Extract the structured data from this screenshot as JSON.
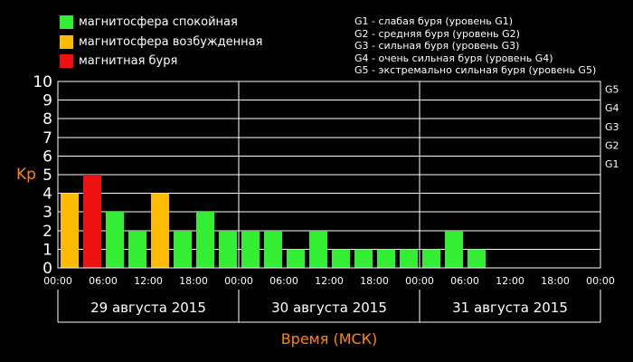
{
  "legend": [
    {
      "label": "магнитосфера спокойная",
      "color": "#33ee33"
    },
    {
      "label": "магнитосфера возбужденная",
      "color": "#ffbb00"
    },
    {
      "label": "магнитная буря",
      "color": "#ee1111"
    }
  ],
  "g_legend": [
    "G1 - слабая буря (уровень G1)",
    "G2 - средняя буря (уровень G2)",
    "G3 - сильная буря (уровень G3)",
    "G4 - очень сильная буря (уровень G4)",
    "G5 - экстремально сильная буря (уровень G5)"
  ],
  "chart_data": {
    "type": "bar",
    "ylabel": "Kp",
    "xlabel": "Время (МСК)",
    "ylim": [
      0,
      10
    ],
    "yticks": [
      "0",
      "1",
      "2",
      "3",
      "4",
      "5",
      "6",
      "7",
      "8",
      "9",
      "10"
    ],
    "g_levels": [
      {
        "label": "G1",
        "kp": 5
      },
      {
        "label": "G2",
        "kp": 6
      },
      {
        "label": "G3",
        "kp": 7
      },
      {
        "label": "G4",
        "kp": 8
      },
      {
        "label": "G5",
        "kp": 9
      }
    ],
    "xticks": [
      "00:00",
      "06:00",
      "12:00",
      "18:00",
      "00:00",
      "06:00",
      "12:00",
      "18:00",
      "00:00",
      "06:00",
      "12:00",
      "18:00",
      "00:00"
    ],
    "days": [
      "29 августа 2015",
      "30 августа 2015",
      "31 августа 2015"
    ],
    "slots": 24,
    "values": [
      4,
      5,
      3,
      2,
      4,
      2,
      3,
      2,
      2,
      2,
      1,
      2,
      1,
      1,
      1,
      1,
      1,
      2,
      1
    ],
    "colors": [
      "#ffbb00",
      "#ee1111",
      "#33ee33",
      "#33ee33",
      "#ffbb00",
      "#33ee33",
      "#33ee33",
      "#33ee33",
      "#33ee33",
      "#33ee33",
      "#33ee33",
      "#33ee33",
      "#33ee33",
      "#33ee33",
      "#33ee33",
      "#33ee33",
      "#33ee33",
      "#33ee33",
      "#33ee33"
    ],
    "colors_meaning": {
      "#33ee33": "магнитосфера спокойная",
      "#ffbb00": "магнитосфера возбужденная",
      "#ee1111": "магнитная буря"
    },
    "grid": true,
    "legend_position": "top"
  },
  "theme": {
    "background": "#000000",
    "axis_label_color": "#ff8800",
    "grid_color": "#ffffff"
  }
}
